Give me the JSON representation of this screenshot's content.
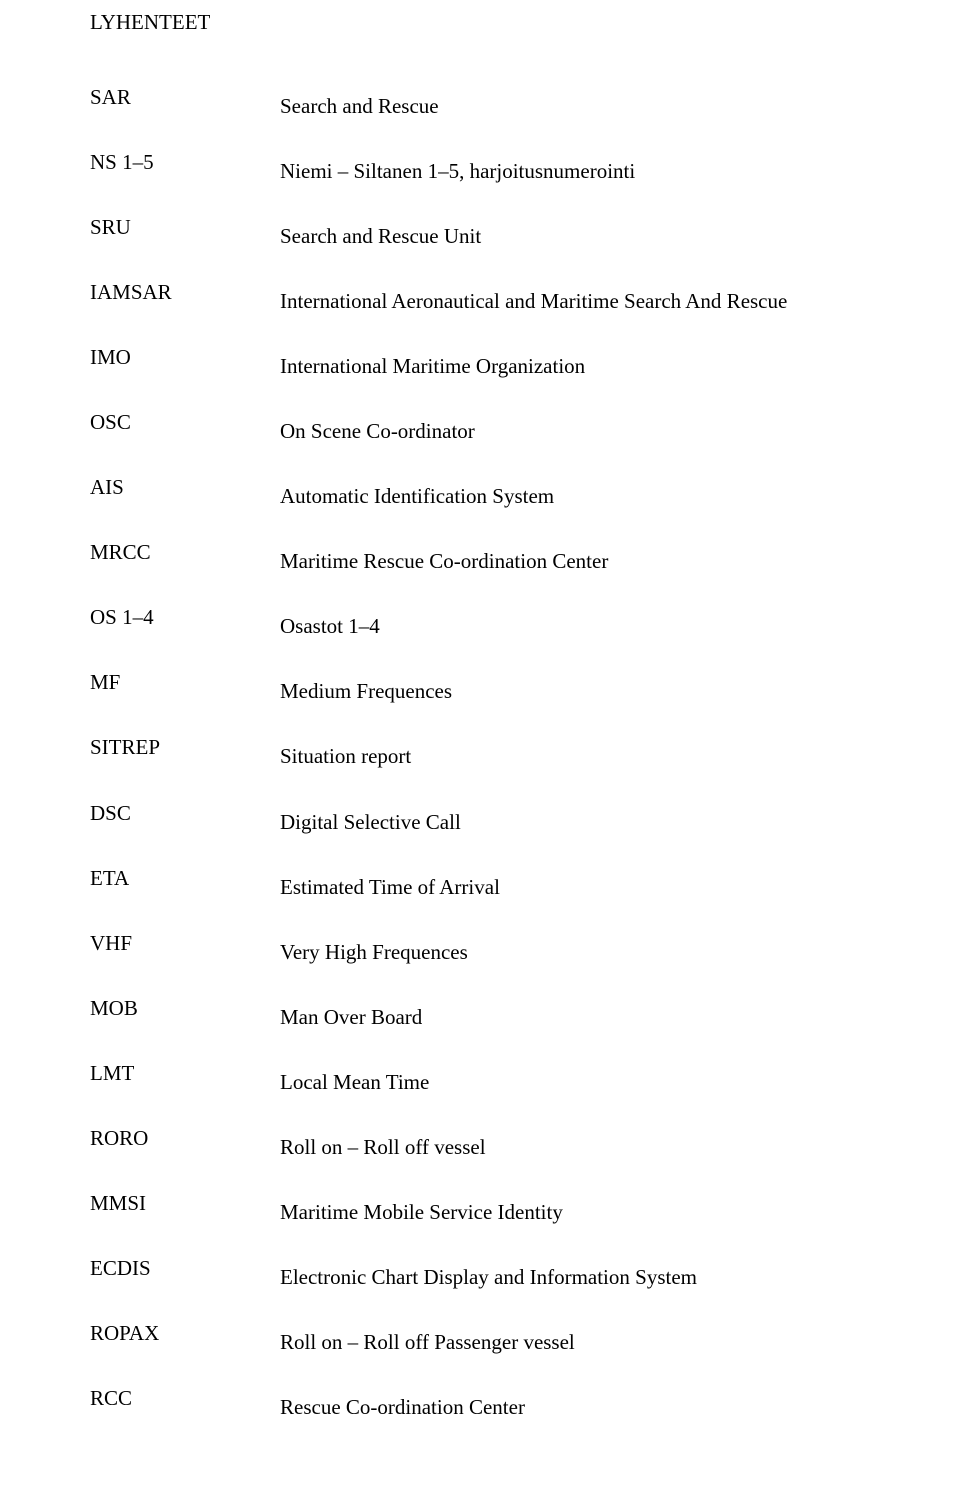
{
  "title": "LYHENTEET",
  "rows": [
    {
      "abbr": "SAR",
      "def": "Search and Rescue"
    },
    {
      "abbr": "NS 1–5",
      "def": "Niemi – Siltanen 1–5, harjoitusnumerointi"
    },
    {
      "abbr": "SRU",
      "def": "Search and Rescue Unit"
    },
    {
      "abbr": "IAMSAR",
      "def": "International Aeronautical and Maritime Search And Rescue"
    },
    {
      "abbr": "IMO",
      "def": "International Maritime Organization"
    },
    {
      "abbr": "OSC",
      "def": "On Scene Co-ordinator"
    },
    {
      "abbr": "AIS",
      "def": "Automatic Identification System"
    },
    {
      "abbr": "MRCC",
      "def": "Maritime Rescue Co-ordination Center"
    },
    {
      "abbr": "OS 1–4",
      "def": "Osastot 1–4"
    },
    {
      "abbr": "MF",
      "def": "Medium Frequences"
    },
    {
      "abbr": "SITREP",
      "def": "Situation report"
    },
    {
      "abbr": "DSC",
      "def": "Digital Selective Call"
    },
    {
      "abbr": "ETA",
      "def": "Estimated Time of Arrival"
    },
    {
      "abbr": "VHF",
      "def": "Very High Frequences"
    },
    {
      "abbr": "MOB",
      "def": "Man Over Board"
    },
    {
      "abbr": "LMT",
      "def": "Local Mean Time"
    },
    {
      "abbr": "RORO",
      "def": "Roll on – Roll off vessel"
    },
    {
      "abbr": "MMSI",
      "def": "Maritime Mobile Service Identity"
    },
    {
      "abbr": "ECDIS",
      "def": "Electronic Chart Display and Information System"
    },
    {
      "abbr": "ROPAX",
      "def": "Roll on – Roll off Passenger vessel"
    },
    {
      "abbr": "RCC",
      "def": "Rescue Co-ordination Center"
    }
  ]
}
